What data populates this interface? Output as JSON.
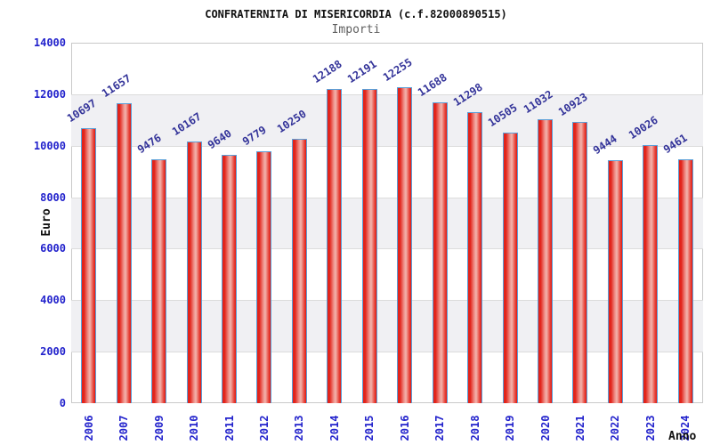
{
  "chart_data": {
    "type": "bar",
    "title": "CONFRATERNITA DI MISERICORDIA (c.f.82000890515)",
    "subtitle": "Importi",
    "xlabel": "Anno",
    "ylabel": "Euro",
    "categories": [
      "2006",
      "2007",
      "2009",
      "2010",
      "2011",
      "2012",
      "2013",
      "2014",
      "2015",
      "2016",
      "2017",
      "2018",
      "2019",
      "2020",
      "2021",
      "2022",
      "2023",
      "2024"
    ],
    "values": [
      10697,
      11657,
      9476,
      10167,
      9640,
      9779,
      10250,
      12188,
      12191,
      12255,
      11688,
      11298,
      10505,
      11032,
      10923,
      9444,
      10026,
      9461
    ],
    "ylim": [
      0,
      14000
    ],
    "ytick_step": 2000,
    "yticks": [
      0,
      2000,
      4000,
      6000,
      8000,
      10000,
      12000,
      14000
    ],
    "grid": "horizontal-bands",
    "legend_position": "none",
    "colors": {
      "bar_fill": "#e2231a",
      "bar_fill_highlight": "#f2b5ae",
      "bar_border": "#5b9fd8",
      "axis_tick_label": "#2222cc",
      "value_label": "#333399",
      "band_fill": "#f0f0f3",
      "gridline": "#dcdcdc",
      "plot_border": "#c9c9c9",
      "title_color": "#111111",
      "subtitle_color": "#606060"
    }
  }
}
